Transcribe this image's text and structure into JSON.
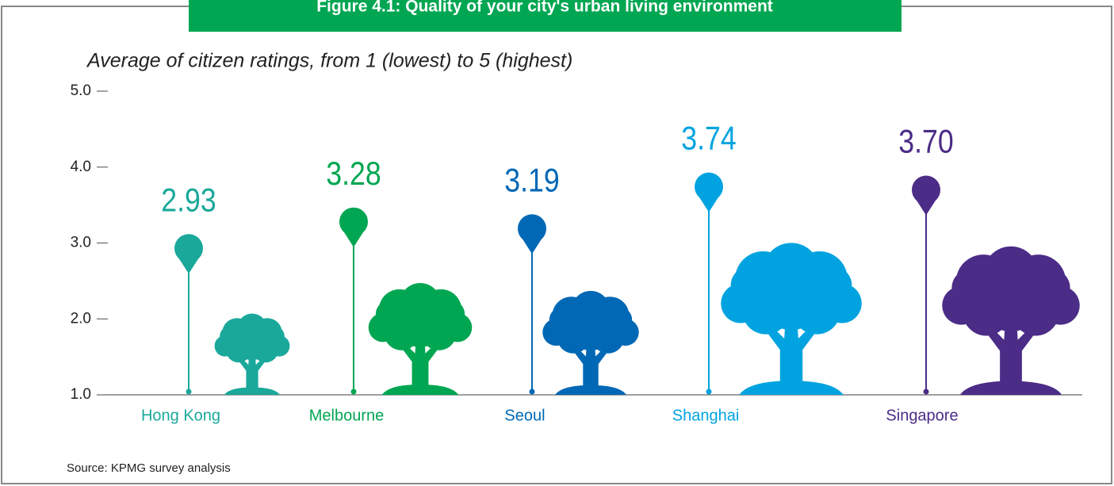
{
  "chart_data": {
    "type": "lollipop",
    "title": "Figure 4.1: Quality of your city's urban living environment",
    "subtitle": "Average of citizen ratings, from 1 (lowest) to 5 (highest)",
    "source": "Source: KPMG survey analysis",
    "categories": [
      "Hong Kong",
      "Melbourne",
      "Seoul",
      "Shanghai",
      "Singapore"
    ],
    "values": [
      2.93,
      3.28,
      3.19,
      3.74,
      3.7
    ],
    "value_labels": [
      "2.93",
      "3.28",
      "3.19",
      "3.74",
      "3.70"
    ],
    "colors": [
      "#1aa89b",
      "#00a651",
      "#0068b5",
      "#00a3e0",
      "#4b2c87"
    ],
    "ylim": [
      1,
      5
    ],
    "yticks": [
      {
        "value": 1,
        "label": "1.0"
      },
      {
        "value": 2,
        "label": "2.0"
      },
      {
        "value": 3,
        "label": "3.0"
      },
      {
        "value": 4,
        "label": "4.0"
      },
      {
        "value": 5,
        "label": "5.0"
      }
    ]
  }
}
